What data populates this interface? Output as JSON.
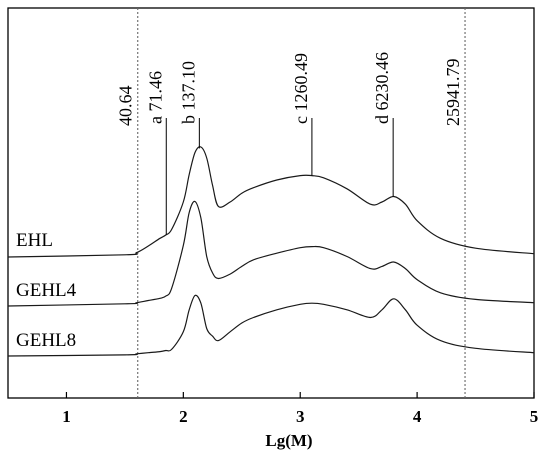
{
  "chart_data": {
    "type": "line",
    "title": "",
    "xlabel": "Lg(M)",
    "ylabel": "",
    "xlim": [
      0.5,
      5.0
    ],
    "x_ticks": [
      1,
      2,
      3,
      4,
      5
    ],
    "x_tick_labels": [
      "1",
      "2",
      "3",
      "4",
      "5"
    ],
    "grid": false,
    "legend": "inline labels on left",
    "boundaries": [
      {
        "label": "40.64",
        "x": 1.61
      },
      {
        "label": "25941.79",
        "x": 4.41
      }
    ],
    "peaks": [
      {
        "letter": "a",
        "value": "71.46",
        "x": 1.854
      },
      {
        "letter": "b",
        "value": "137.10",
        "x": 2.137
      },
      {
        "letter": "c",
        "value": "1260.49",
        "x": 3.1
      },
      {
        "letter": "d",
        "value": "6230.46",
        "x": 3.795
      }
    ],
    "series": [
      {
        "name": "EHL",
        "x": [
          0.5,
          1.5,
          1.6,
          1.7,
          1.8,
          1.85,
          1.9,
          2.0,
          2.05,
          2.1,
          2.15,
          2.2,
          2.25,
          2.3,
          2.4,
          2.5,
          2.6,
          2.8,
          3.0,
          3.1,
          3.2,
          3.4,
          3.6,
          3.7,
          3.8,
          3.9,
          4.0,
          4.2,
          4.5,
          5.0
        ],
        "y": [
          0.0,
          0.02,
          0.04,
          0.1,
          0.17,
          0.2,
          0.25,
          0.5,
          0.75,
          0.95,
          1.0,
          0.9,
          0.65,
          0.46,
          0.5,
          0.58,
          0.63,
          0.7,
          0.74,
          0.74,
          0.72,
          0.62,
          0.48,
          0.5,
          0.55,
          0.48,
          0.33,
          0.17,
          0.08,
          0.03
        ]
      },
      {
        "name": "GEHL4",
        "x": [
          0.5,
          1.5,
          1.6,
          1.7,
          1.8,
          1.85,
          1.9,
          2.0,
          2.05,
          2.1,
          2.15,
          2.2,
          2.25,
          2.3,
          2.4,
          2.5,
          2.6,
          2.8,
          3.0,
          3.1,
          3.2,
          3.4,
          3.6,
          3.7,
          3.8,
          3.9,
          4.0,
          4.2,
          4.5,
          5.0
        ],
        "y": [
          0.0,
          0.02,
          0.03,
          0.05,
          0.07,
          0.09,
          0.16,
          0.55,
          0.85,
          0.95,
          0.8,
          0.45,
          0.3,
          0.25,
          0.29,
          0.36,
          0.42,
          0.48,
          0.53,
          0.54,
          0.53,
          0.45,
          0.34,
          0.36,
          0.4,
          0.34,
          0.24,
          0.12,
          0.06,
          0.03
        ]
      },
      {
        "name": "GEHL8",
        "x": [
          0.5,
          1.5,
          1.6,
          1.7,
          1.8,
          1.85,
          1.9,
          2.0,
          2.05,
          2.1,
          2.15,
          2.2,
          2.25,
          2.3,
          2.4,
          2.5,
          2.6,
          2.8,
          3.0,
          3.1,
          3.2,
          3.4,
          3.6,
          3.7,
          3.8,
          3.9,
          4.0,
          4.2,
          4.5,
          5.0
        ],
        "y": [
          0.0,
          0.01,
          0.02,
          0.03,
          0.04,
          0.05,
          0.06,
          0.22,
          0.42,
          0.55,
          0.48,
          0.25,
          0.18,
          0.14,
          0.22,
          0.3,
          0.35,
          0.42,
          0.47,
          0.48,
          0.47,
          0.42,
          0.35,
          0.42,
          0.52,
          0.42,
          0.28,
          0.14,
          0.07,
          0.03
        ]
      }
    ]
  }
}
